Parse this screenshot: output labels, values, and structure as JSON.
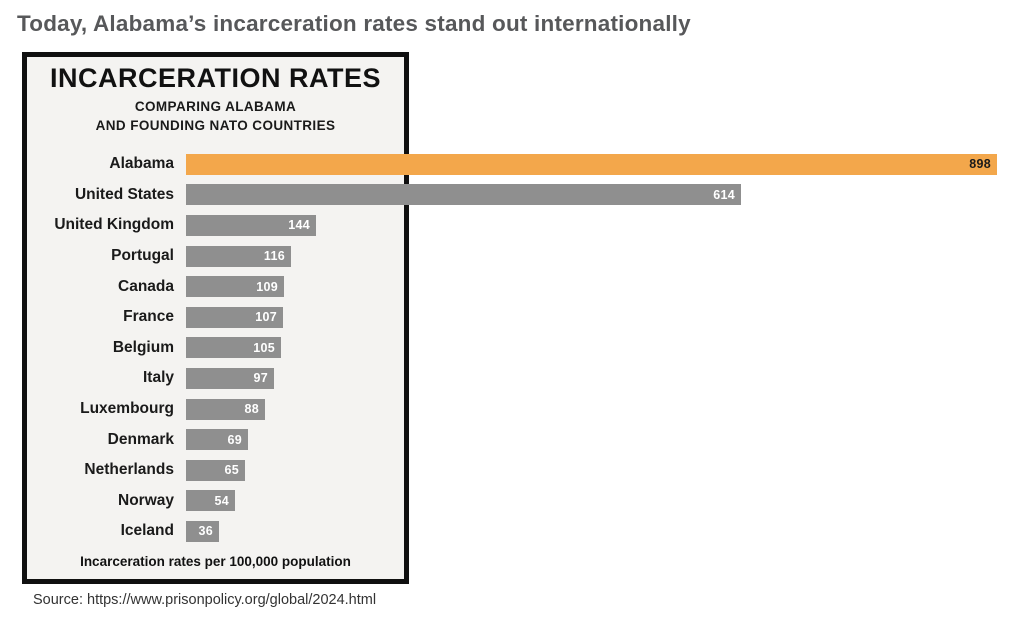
{
  "page": {
    "headline": "Today, Alabama’s incarceration rates stand out internationally",
    "source": "Source: https://www.prisonpolicy.org/global/2024.html",
    "background_color": "#ffffff",
    "headline_color": "#57585a"
  },
  "panel": {
    "title": "INCARCERATION RATES",
    "subtitle_lines": [
      "COMPARING ALABAMA",
      "AND FOUNDING NATO COUNTRIES"
    ],
    "footnote": "Incarceration rates per 100,000 population",
    "background_color": "#f4f3f1",
    "border_color": "#101010"
  },
  "chart_data": {
    "type": "bar",
    "orientation": "horizontal",
    "title": "INCARCERATION RATES",
    "subtitle": "COMPARING ALABAMA AND FOUNDING NATO COUNTRIES",
    "unit_note": "Incarceration rates per 100,000 population",
    "categories": [
      "Alabama",
      "United States",
      "United Kingdom",
      "Portugal",
      "Canada",
      "France",
      "Belgium",
      "Italy",
      "Luxembourg",
      "Denmark",
      "Netherlands",
      "Norway",
      "Iceland"
    ],
    "values": [
      898,
      614,
      144,
      116,
      109,
      107,
      105,
      97,
      88,
      69,
      65,
      54,
      36
    ],
    "highlight_category": "Alabama",
    "value_labels": "inside-end",
    "xlim": [
      0,
      900
    ],
    "grid": false,
    "legend": false,
    "colors": {
      "highlight_bar": "#f3a74b",
      "default_bar": "#8f8f8f",
      "value_text_on_highlight": "#1a1a1a",
      "value_text_on_default": "#ffffff"
    }
  }
}
